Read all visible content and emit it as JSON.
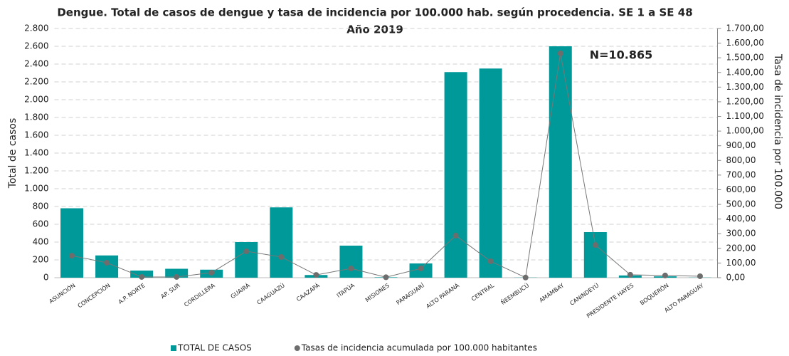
{
  "chart_data": {
    "type": "bar",
    "title": "Dengue. Total de casos de dengue y tasa de incidencia por 100.000 hab. según procedencia.  SE 1 a SE 48",
    "subtitle": "Año 2019",
    "y_label": "Total de casos",
    "y2_label": "Tasa de incidencia por 100.000",
    "annotation": "N=10.865",
    "categories": [
      "ASUNCIÓN",
      "CONCEPCIÓN",
      "A.P. NORTE",
      "AP. SUR",
      "CORDILLERA",
      "GUAIRÁ",
      "CAAGUAZÚ",
      "CAAZAPÁ",
      "ITAPÚA",
      "MISIONES",
      "PARAGUARÍ",
      "ALTO PARANÁ",
      "CENTRAL",
      "ÑEEMBUCÚ",
      "AMAMBAY",
      "CANINDEYÚ",
      "PRESIDENTE HAYES",
      "BOQUERÓN",
      "ALTO PARAGUAY"
    ],
    "series": [
      {
        "name": "TOTAL DE CASOS",
        "type": "bar",
        "color": "#00999a",
        "values": [
          780,
          250,
          80,
          100,
          90,
          400,
          790,
          30,
          360,
          5,
          160,
          2310,
          2350,
          2,
          2600,
          512,
          25,
          15,
          2
        ]
      },
      {
        "name": "Tasas de incidencia acumulada por 100.000 habitantes",
        "type": "line",
        "axis": "y2",
        "color": "#6d6d6d",
        "values": [
          150,
          102,
          5,
          5,
          34,
          180,
          141,
          19,
          63,
          3,
          63,
          287,
          112,
          1,
          1530,
          223,
          20,
          15,
          10
        ]
      }
    ],
    "ylim": [
      0,
      2800
    ],
    "yticks": [
      0,
      200,
      400,
      600,
      800,
      {
        "value": 1000,
        "label": "1.000"
      },
      {
        "value": 1200,
        "label": "1.200"
      },
      {
        "value": 1400,
        "label": "1.400"
      },
      {
        "value": 1600,
        "label": "1.600"
      },
      {
        "value": 1800,
        "label": "1.800"
      },
      {
        "value": 2000,
        "label": "2.000"
      },
      {
        "value": 2200,
        "label": "2.200"
      },
      {
        "value": 2400,
        "label": "2.400"
      },
      {
        "value": 2600,
        "label": "2.600"
      },
      {
        "value": 2800,
        "label": "2.800"
      }
    ],
    "y2lim": [
      0,
      1700
    ],
    "y2ticks": [
      {
        "value": 0,
        "label": "0,00"
      },
      {
        "value": 100,
        "label": "100,00"
      },
      {
        "value": 200,
        "label": "200,00"
      },
      {
        "value": 300,
        "label": "300,00"
      },
      {
        "value": 400,
        "label": "400,00"
      },
      {
        "value": 500,
        "label": "500,00"
      },
      {
        "value": 600,
        "label": "600,00"
      },
      {
        "value": 700,
        "label": "700,00"
      },
      {
        "value": 800,
        "label": "800,00"
      },
      {
        "value": 900,
        "label": "900,00"
      },
      {
        "value": 1000,
        "label": "1.000,00"
      },
      {
        "value": 1100,
        "label": "1.100,00"
      },
      {
        "value": 1200,
        "label": "1.200,00"
      },
      {
        "value": 1300,
        "label": "1.300,00"
      },
      {
        "value": 1400,
        "label": "1.400,00"
      },
      {
        "value": 1500,
        "label": "1.500,00"
      },
      {
        "value": 1600,
        "label": "1.600,00"
      },
      {
        "value": 1700,
        "label": "1.700,00"
      }
    ],
    "grid": true,
    "legend": "bottom"
  }
}
